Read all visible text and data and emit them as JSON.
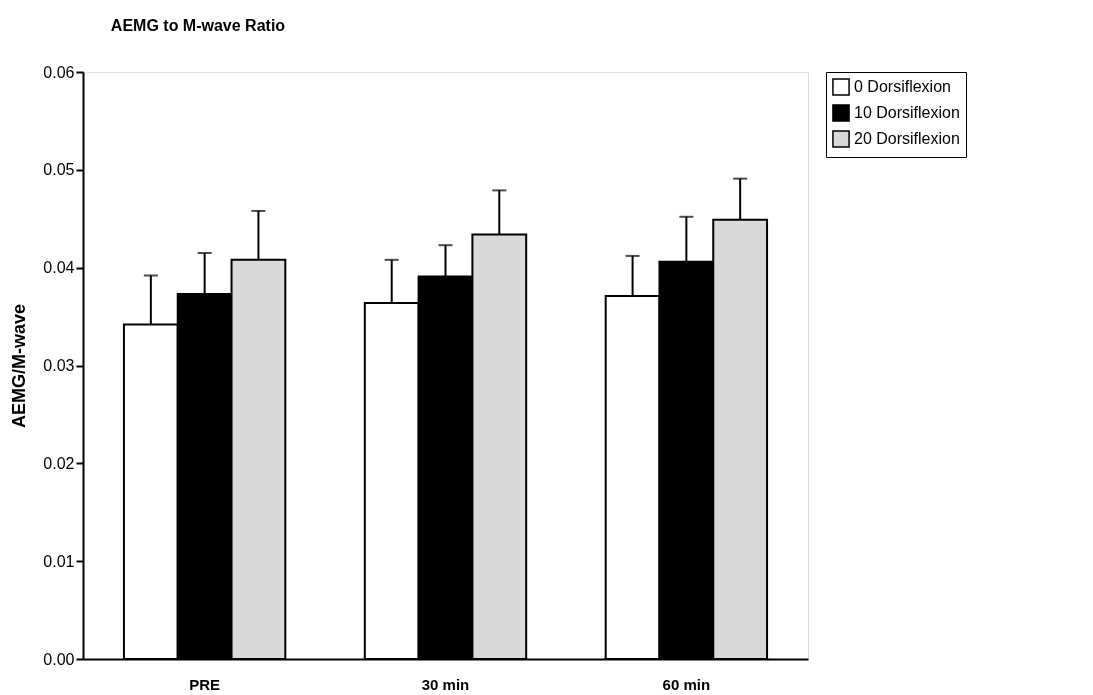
{
  "chart_data": {
    "type": "bar",
    "title": "AEMG to M-wave Ratio",
    "ylabel": "AEMG/M-wave",
    "categories": [
      "PRE",
      "30 min",
      "60 min"
    ],
    "series": [
      {
        "name": "0  Dorsiflexion",
        "color": "#ffffff",
        "values": [
          0.0342,
          0.0364,
          0.0371
        ],
        "errors": [
          [
            0.0342,
            0.0392
          ],
          [
            0.0364,
            0.0408
          ],
          [
            0.0371,
            0.0412
          ]
        ]
      },
      {
        "name": "10 Dorsiflexion",
        "color": "#000000",
        "values": [
          0.0373,
          0.0391,
          0.0406
        ],
        "errors": [
          [
            0.0373,
            0.0415
          ],
          [
            0.0391,
            0.0423
          ],
          [
            0.0406,
            0.0452
          ]
        ]
      },
      {
        "name": "20 Dorsiflexion",
        "color": "#d9d9d9",
        "values": [
          0.0408,
          0.0434,
          0.0449
        ],
        "errors": [
          [
            0.0408,
            0.0458
          ],
          [
            0.0434,
            0.0479
          ],
          [
            0.0449,
            0.0491
          ]
        ]
      }
    ],
    "ylim": [
      0,
      0.06
    ],
    "yticks": [
      {
        "value": 0,
        "label": "0.00"
      },
      0.01,
      0.02,
      0.03,
      0.04,
      0.05,
      0.06
    ],
    "grid": false,
    "legend": "right"
  }
}
